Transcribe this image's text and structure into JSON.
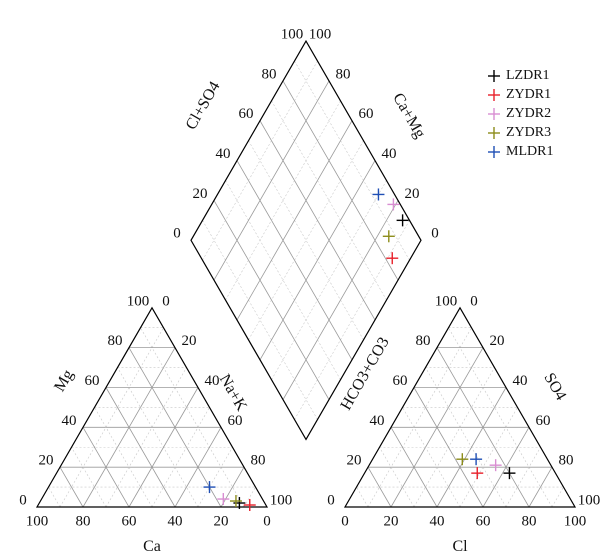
{
  "chart_data": {
    "type": "scatter",
    "subtype": "piper-trilinear-diagram",
    "legend": {
      "placement": "top-right",
      "entries": [
        {
          "name": "LZDR1",
          "color": "#000000"
        },
        {
          "name": "ZYDR1",
          "color": "#e8202a"
        },
        {
          "name": "ZYDR2",
          "color": "#d98ed2"
        },
        {
          "name": "ZYDR3",
          "color": "#8c8c1a"
        },
        {
          "name": "MLDR1",
          "color": "#1f4fb5"
        }
      ]
    },
    "cation_triangle": {
      "axes": {
        "bottom": "Ca",
        "left": "Mg",
        "right": "Na+K"
      },
      "ticks": {
        "bottom": [
          "100",
          "80",
          "60",
          "40",
          "20",
          "0"
        ],
        "left": [
          "0",
          "20",
          "40",
          "60",
          "80",
          "100"
        ],
        "right": [
          "0",
          "20",
          "40",
          "60",
          "80",
          "100"
        ]
      }
    },
    "anion_triangle": {
      "axes": {
        "bottom": "Cl",
        "left": "HCO3+CO3",
        "right": "SO4"
      },
      "ticks": {
        "bottom": [
          "0",
          "20",
          "40",
          "60",
          "80",
          "100"
        ],
        "left": [
          "100",
          "80",
          "60",
          "40",
          "20",
          "0"
        ],
        "right": [
          "100",
          "80",
          "60",
          "40",
          "20",
          "0"
        ]
      }
    },
    "diamond": {
      "axes": {
        "upper_left": "Cl+SO4",
        "upper_right": "Ca+Mg"
      },
      "ticks": {
        "upper_left": [
          "0",
          "20",
          "40",
          "60",
          "80",
          "100"
        ],
        "upper_right": [
          "100",
          "80",
          "60",
          "40",
          "20",
          "0"
        ]
      }
    },
    "series": [
      {
        "name": "LZDR1",
        "cation": {
          "ca": 11,
          "mg": 2,
          "nak": 87
        },
        "anion": {
          "cl": 80,
          "so4": 17
        },
        "diamond": {
          "clso4": 97,
          "camg": 13
        }
      },
      {
        "name": "ZYDR1",
        "cation": {
          "ca": 7,
          "mg": 1,
          "nak": 92
        },
        "anion": {
          "cl": 66,
          "so4": 17
        },
        "diamond": {
          "clso4": 83,
          "camg": 8
        }
      },
      {
        "name": "ZYDR2",
        "cation": {
          "ca": 17,
          "mg": 4,
          "nak": 79
        },
        "anion": {
          "cl": 76,
          "so4": 21
        },
        "diamond": {
          "clso4": 97,
          "camg": 21
        }
      },
      {
        "name": "ZYDR3",
        "cation": {
          "ca": 12,
          "mg": 3,
          "nak": 85
        },
        "anion": {
          "cl": 63,
          "so4": 24
        },
        "diamond": {
          "clso4": 87,
          "camg": 15
        }
      },
      {
        "name": "MLDR1",
        "cation": {
          "ca": 20,
          "mg": 10,
          "nak": 70
        },
        "anion": {
          "cl": 69,
          "so4": 24
        },
        "diamond": {
          "clso4": 93,
          "camg": 30
        }
      }
    ]
  }
}
